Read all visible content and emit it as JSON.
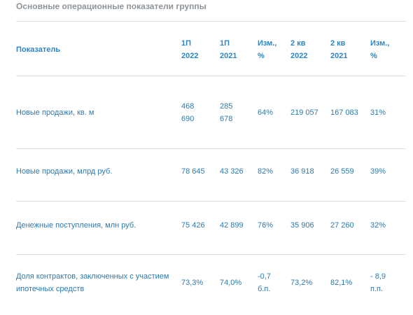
{
  "page": {
    "title": "Основные операционные показатели группы"
  },
  "table": {
    "headers": {
      "indicator": "Показатель",
      "h1_2022": [
        "1П",
        "2022"
      ],
      "h1_2021": [
        "1П",
        "2021"
      ],
      "change_h1": [
        "Изм.,",
        "%"
      ],
      "q2_2022": [
        "2 кв",
        "2022"
      ],
      "q2_2021": [
        "2 кв",
        "2021"
      ],
      "change_q2": [
        "Изм.,",
        "%"
      ]
    },
    "rows": [
      {
        "label": [
          "Новые продажи, кв. м"
        ],
        "h1_2022": [
          "468",
          "690"
        ],
        "h1_2021": [
          "285",
          "678"
        ],
        "change_h1": [
          "64%"
        ],
        "q2_2022": [
          "219 057"
        ],
        "q2_2021": [
          "167 083"
        ],
        "change_q2": [
          "31%"
        ]
      },
      {
        "label": [
          "Новые продажи, млрд руб."
        ],
        "h1_2022": [
          "78 645"
        ],
        "h1_2021": [
          "43 326"
        ],
        "change_h1": [
          "82%"
        ],
        "q2_2022": [
          "36 918"
        ],
        "q2_2021": [
          "26 559"
        ],
        "change_q2": [
          "39%"
        ]
      },
      {
        "label": [
          "Денежные поступления, млн руб."
        ],
        "h1_2022": [
          "75 426"
        ],
        "h1_2021": [
          "42 899"
        ],
        "change_h1": [
          "76%"
        ],
        "q2_2022": [
          "35 906"
        ],
        "q2_2021": [
          "27 260"
        ],
        "change_q2": [
          "32%"
        ]
      },
      {
        "label": [
          "Доля контрактов, заключенных с участием",
          "ипотечных средств"
        ],
        "h1_2022": [
          "73,3%"
        ],
        "h1_2021": [
          "74,0%"
        ],
        "change_h1": [
          "-0,7",
          "б.п."
        ],
        "q2_2022": [
          "73,2%"
        ],
        "q2_2021": [
          "82,1%"
        ],
        "change_q2": [
          "- 8,9",
          "п.п."
        ]
      }
    ]
  }
}
